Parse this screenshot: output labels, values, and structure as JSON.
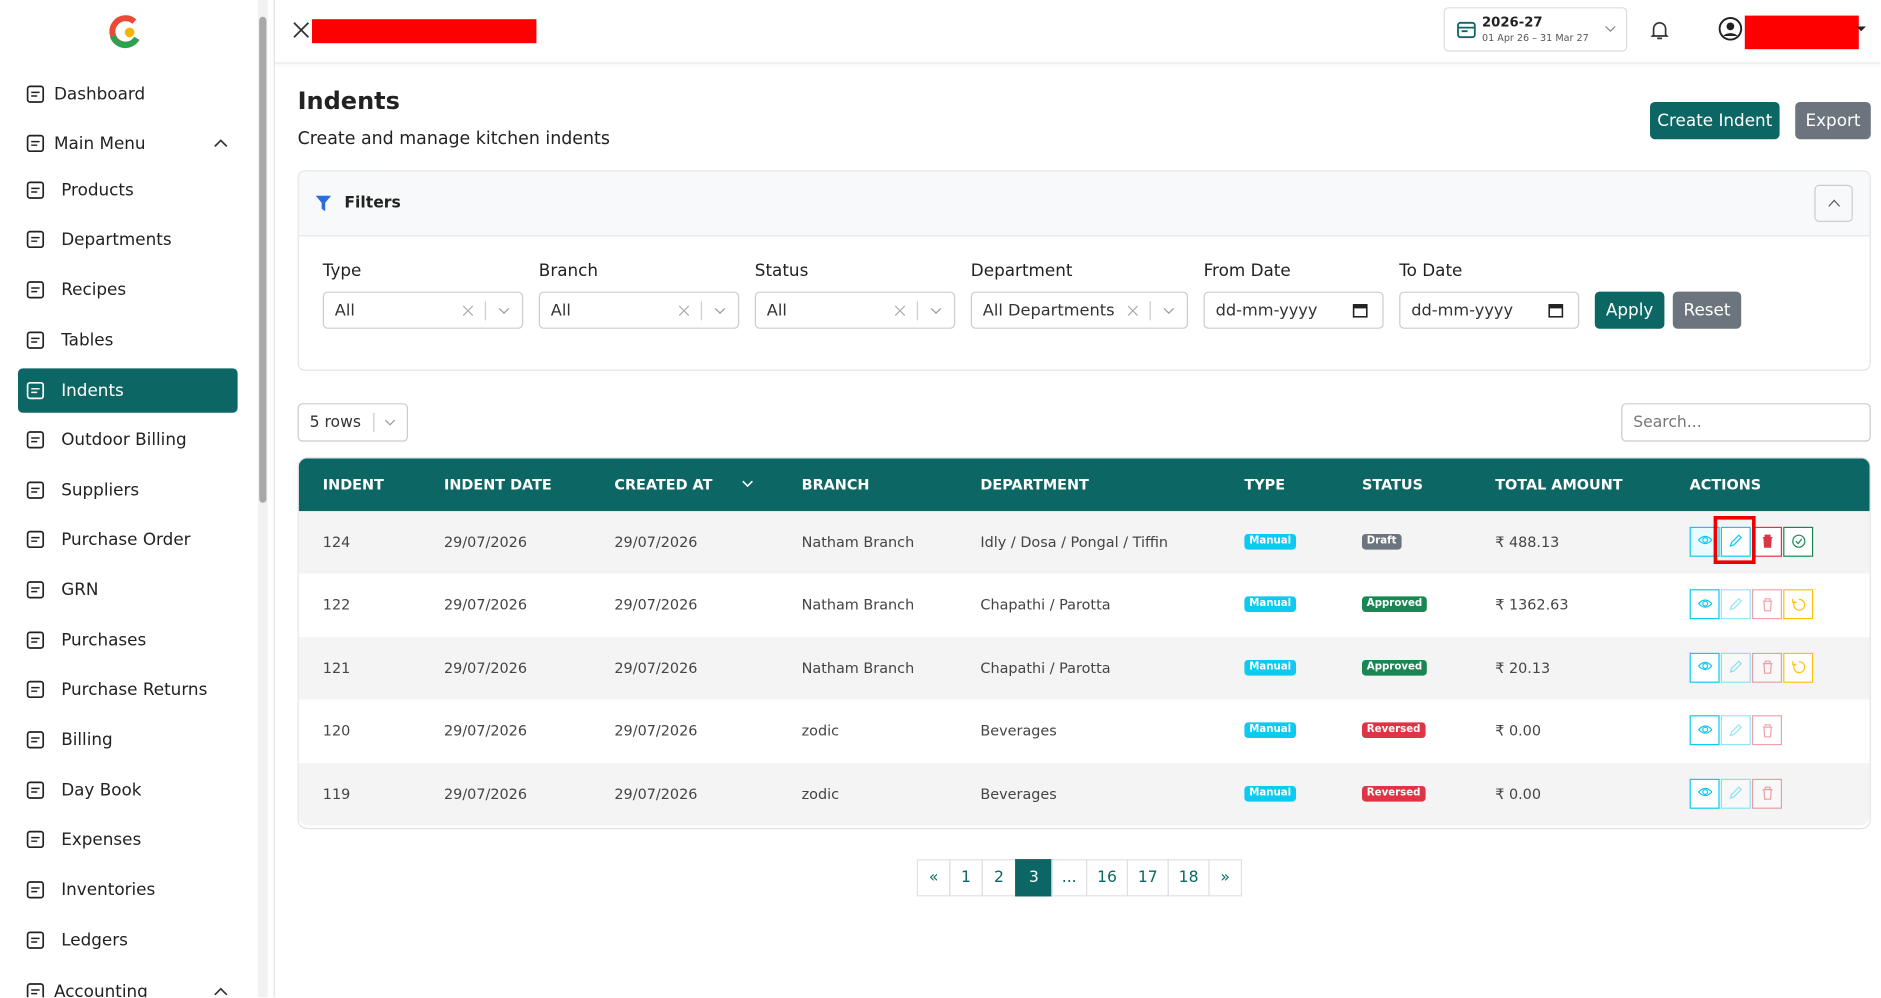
{
  "header": {
    "fy": "2026-27",
    "fy_range": "01 Apr 26 – 31 Mar 27"
  },
  "sidebar": {
    "items": [
      "Dashboard",
      "Main Menu",
      "Products",
      "Departments",
      "Recipes",
      "Tables",
      "Indents",
      "Outdoor Billing",
      "Suppliers",
      "Purchase Order",
      "GRN",
      "Purchases",
      "Purchase Returns",
      "Billing",
      "Day Book",
      "Expenses",
      "Inventories",
      "Ledgers",
      "Accounting"
    ]
  },
  "page": {
    "title": "Indents",
    "subtitle": "Create and manage kitchen indents",
    "create": "Create Indent",
    "export": "Export"
  },
  "filters": {
    "title": "Filters",
    "fields": [
      {
        "label": "Type",
        "value": "All"
      },
      {
        "label": "Branch",
        "value": "All"
      },
      {
        "label": "Status",
        "value": "All"
      },
      {
        "label": "Department",
        "value": "All Departments"
      },
      {
        "label": "From Date",
        "value": "dd-mm-yyyy"
      },
      {
        "label": "To Date",
        "value": "dd-mm-yyyy"
      }
    ],
    "apply": "Apply",
    "reset": "Reset"
  },
  "table": {
    "rows_select": "5 rows",
    "search": "Search...",
    "columns": [
      "INDENT",
      "INDENT DATE",
      "CREATED AT",
      "BRANCH",
      "DEPARTMENT",
      "TYPE",
      "STATUS",
      "TOTAL AMOUNT",
      "ACTIONS"
    ],
    "rows": [
      [
        "124",
        "29/07/2026",
        "29/07/2026",
        "Natham Branch",
        "Idly / Dosa / Pongal / Tiffin",
        "Manual",
        "Draft",
        "₹ 488.13"
      ],
      [
        "122",
        "29/07/2026",
        "29/07/2026",
        "Natham Branch",
        "Chapathi / Parotta",
        "Manual",
        "Approved",
        "₹ 1362.63"
      ],
      [
        "121",
        "29/07/2026",
        "29/07/2026",
        "Natham Branch",
        "Chapathi / Parotta",
        "Manual",
        "Approved",
        "₹ 20.13"
      ],
      [
        "120",
        "29/07/2026",
        "29/07/2026",
        "zodic",
        "Beverages",
        "Manual",
        "Reversed",
        "₹ 0.00"
      ],
      [
        "119",
        "29/07/2026",
        "29/07/2026",
        "zodic",
        "Beverages",
        "Manual",
        "Reversed",
        "₹ 0.00"
      ]
    ]
  },
  "pagination": [
    "«",
    "1",
    "2",
    "3",
    "...",
    "16",
    "17",
    "18",
    "»"
  ]
}
